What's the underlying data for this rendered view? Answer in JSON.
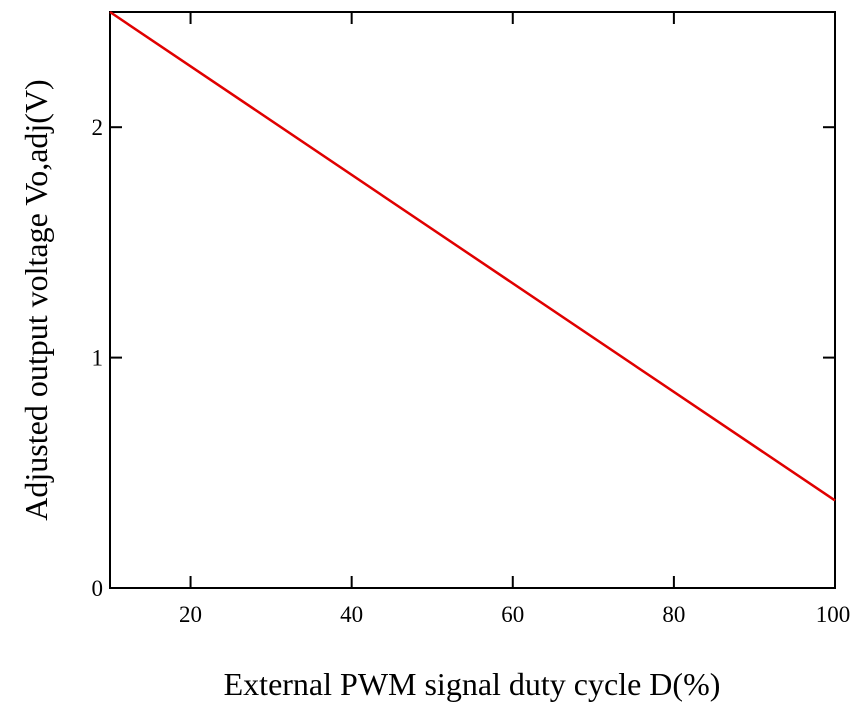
{
  "chart_data": {
    "type": "line",
    "title": "",
    "xlabel": "External PWM signal duty cycle D(%)",
    "ylabel": "Adjusted output voltage Vo,adj(V)",
    "xlim": [
      10,
      100
    ],
    "ylim": [
      0,
      2.5
    ],
    "x_ticks": [
      20,
      40,
      60,
      80,
      100
    ],
    "y_ticks": [
      0,
      1,
      2
    ],
    "grid": false,
    "legend": "none",
    "series": [
      {
        "color": "#e00000",
        "x": [
          10,
          100
        ],
        "y": [
          2.5,
          0.38
        ]
      }
    ]
  }
}
